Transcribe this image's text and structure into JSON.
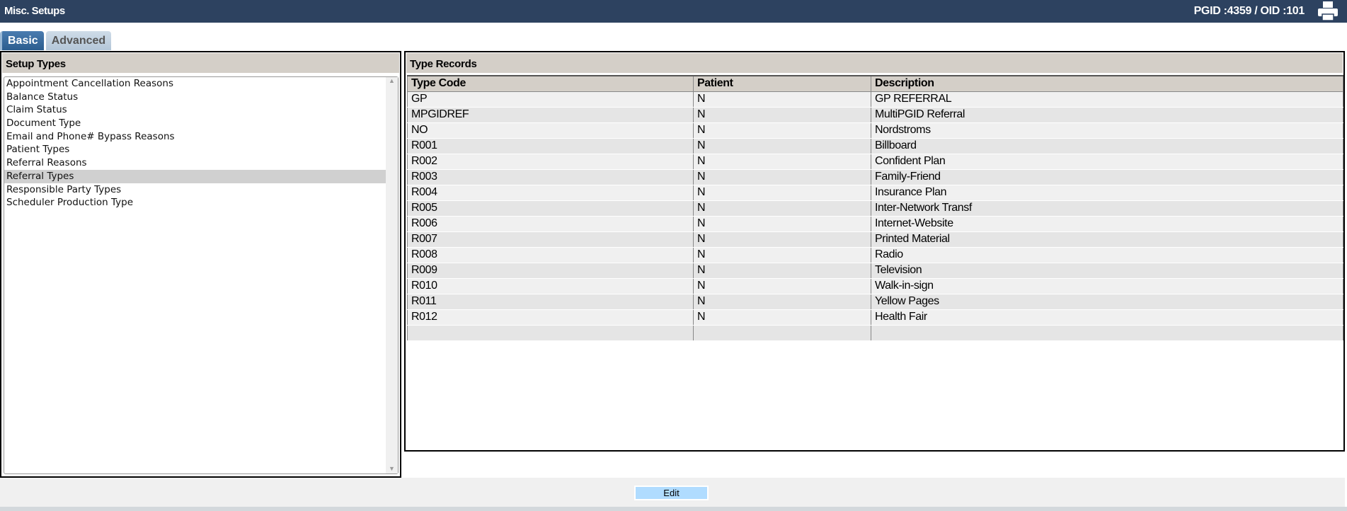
{
  "header": {
    "title": "Misc. Setups",
    "ids": "PGID :4359  /  OID :101",
    "print_icon": "printer-icon"
  },
  "tabs": [
    {
      "label": "Basic",
      "active": true
    },
    {
      "label": "Advanced",
      "active": false
    }
  ],
  "setup_types": {
    "title": "Setup Types",
    "selected": "Referral Types",
    "items": [
      "Appointment Cancellation Reasons",
      "Balance Status",
      "Claim Status",
      "Document Type",
      "Email and Phone# Bypass Reasons",
      "Patient Types",
      "Referral Reasons",
      "Referral Types",
      "Responsible Party Types",
      "Scheduler Production Type"
    ]
  },
  "type_records": {
    "title": "Type Records",
    "columns": [
      "Type Code",
      "Patient",
      "Description"
    ],
    "rows": [
      [
        "GP",
        "N",
        "GP REFERRAL"
      ],
      [
        "MPGIDREF",
        "N",
        "MultiPGID Referral"
      ],
      [
        "NO",
        "N",
        "Nordstroms"
      ],
      [
        "R001",
        "N",
        "Billboard"
      ],
      [
        "R002",
        "N",
        "Confident Plan"
      ],
      [
        "R003",
        "N",
        "Family-Friend"
      ],
      [
        "R004",
        "N",
        "Insurance Plan"
      ],
      [
        "R005",
        "N",
        "Inter-Network Transf"
      ],
      [
        "R006",
        "N",
        "Internet-Website"
      ],
      [
        "R007",
        "N",
        "Printed Material"
      ],
      [
        "R008",
        "N",
        "Radio"
      ],
      [
        "R009",
        "N",
        "Television"
      ],
      [
        "R010",
        "N",
        "Walk-in-sign"
      ],
      [
        "R011",
        "N",
        "Yellow Pages"
      ],
      [
        "R012",
        "N",
        "Health Fair"
      ],
      [
        "",
        "",
        ""
      ]
    ]
  },
  "footer": {
    "edit_label": "Edit"
  }
}
